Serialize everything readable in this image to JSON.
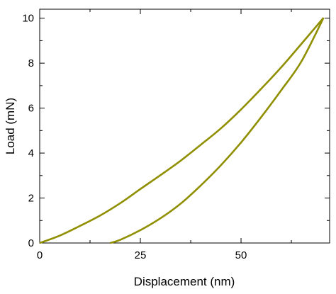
{
  "chart_data": {
    "type": "line",
    "title": "",
    "xlabel": "Displacement (nm)",
    "ylabel": "Load (mN)",
    "xlim": [
      0,
      72
    ],
    "ylim": [
      0,
      10.4
    ],
    "xticks": [
      0,
      25,
      50
    ],
    "xticks_minor": [
      12.5,
      37.5,
      62.5
    ],
    "yticks": [
      0,
      2,
      4,
      6,
      8,
      10
    ],
    "yticks_minor": [
      1,
      3,
      5,
      7,
      9
    ],
    "grid": false,
    "legend": "none",
    "line_color": "#8f8f00",
    "series": [
      {
        "x": [
          0,
          5,
          10,
          15,
          20,
          25,
          30,
          35,
          40,
          45,
          50,
          55,
          60,
          65,
          70.5
        ],
        "y": [
          0,
          0.33,
          0.76,
          1.22,
          1.77,
          2.4,
          3.02,
          3.66,
          4.37,
          5.1,
          5.94,
          6.86,
          7.82,
          8.86,
          10.02
        ]
      },
      {
        "x": [
          17.5,
          20,
          25,
          30,
          35,
          40,
          45,
          50,
          55,
          60,
          65,
          70.5
        ],
        "y": [
          0,
          0.14,
          0.57,
          1.1,
          1.75,
          2.56,
          3.46,
          4.47,
          5.6,
          6.8,
          8.08,
          10.02
        ]
      }
    ]
  }
}
